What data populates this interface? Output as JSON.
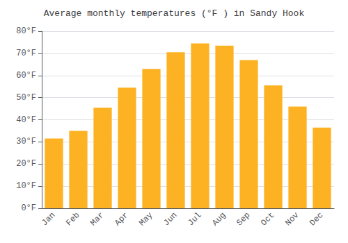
{
  "chart_data": {
    "type": "bar",
    "title": "Average monthly temperatures (°F ) in Sandy Hook",
    "categories": [
      "Jan",
      "Feb",
      "Mar",
      "Apr",
      "May",
      "Jun",
      "Jul",
      "Aug",
      "Sep",
      "Oct",
      "Nov",
      "Dec"
    ],
    "values": [
      31.5,
      35.0,
      45.5,
      54.5,
      63.0,
      70.5,
      74.5,
      73.5,
      67.0,
      55.5,
      46.0,
      36.5
    ],
    "color": "#FDB224",
    "ylim": [
      0,
      80
    ],
    "yticks": [
      {
        "value": 0,
        "label": "0°F"
      },
      {
        "value": 10,
        "label": "10°F"
      },
      {
        "value": 20,
        "label": "20°F"
      },
      {
        "value": 30,
        "label": "30°F"
      },
      {
        "value": 40,
        "label": "40°F"
      },
      {
        "value": 50,
        "label": "50°F"
      },
      {
        "value": 60,
        "label": "60°F"
      },
      {
        "value": 70,
        "label": "70°F"
      },
      {
        "value": 80,
        "label": "80°F"
      }
    ],
    "grid": true
  }
}
